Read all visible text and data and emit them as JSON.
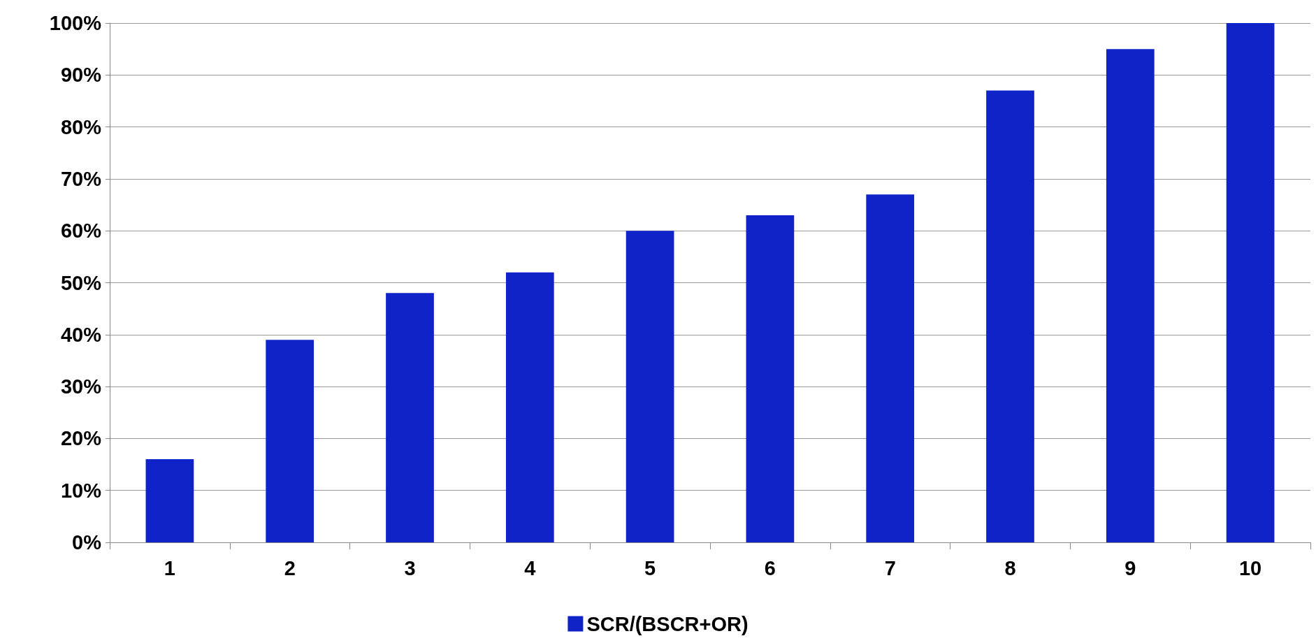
{
  "chart_data": {
    "type": "bar",
    "categories": [
      "1",
      "2",
      "3",
      "4",
      "5",
      "6",
      "7",
      "8",
      "9",
      "10"
    ],
    "series": [
      {
        "name": "SCR/(BSCR+OR)",
        "color": "#1023c8",
        "values": [
          16,
          39,
          48,
          52,
          60,
          63,
          67,
          87,
          95,
          100
        ]
      }
    ],
    "ylim": [
      0,
      100
    ],
    "yticks": [
      {
        "value": 0,
        "label": "0%"
      },
      {
        "value": 10,
        "label": "10%"
      },
      {
        "value": 20,
        "label": "20%"
      },
      {
        "value": 30,
        "label": "30%"
      },
      {
        "value": 40,
        "label": "40%"
      },
      {
        "value": 50,
        "label": "50%"
      },
      {
        "value": 60,
        "label": "60%"
      },
      {
        "value": 70,
        "label": "70%"
      },
      {
        "value": 80,
        "label": "80%"
      },
      {
        "value": 90,
        "label": "90%"
      },
      {
        "value": 100,
        "label": "100%"
      }
    ],
    "grid": "y",
    "legend": "bottom"
  }
}
